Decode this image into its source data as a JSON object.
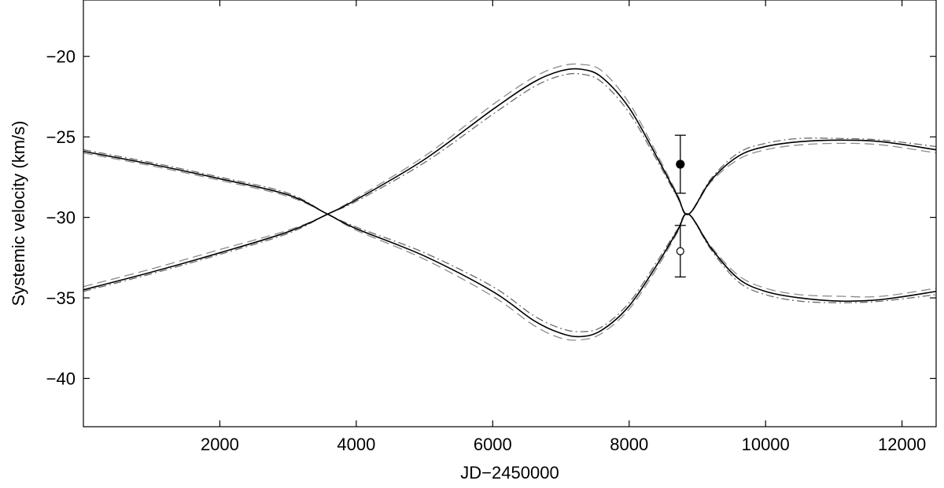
{
  "chart_data": {
    "type": "line",
    "title": "",
    "xlabel": "JD−2450000",
    "ylabel": "Systemic velocity (km/s)",
    "xlim": [
      0,
      12500
    ],
    "ylim": [
      -43,
      -16.5
    ],
    "xticks": [
      2000,
      4000,
      6000,
      8000,
      10000,
      12000
    ],
    "xtick_labels": [
      "2000",
      "4000",
      "6000",
      "8000",
      "10000",
      "12000"
    ],
    "yticks": [
      -40,
      -35,
      -30,
      -25,
      -20
    ],
    "ytick_labels": [
      "−40",
      "−35",
      "−30",
      "−25",
      "−20"
    ],
    "grid": false,
    "legend": "none",
    "series": [
      {
        "style": "solid",
        "x": [
          0,
          1000,
          2000,
          3000,
          3580,
          4000,
          5000,
          6000,
          6600,
          7000,
          7300,
          7600,
          8000,
          8400,
          8700,
          8870,
          9200,
          9600,
          10000,
          10500,
          11100,
          11700,
          12500
        ],
        "y": [
          -25.9,
          -26.7,
          -27.6,
          -28.6,
          -29.8,
          -30.7,
          -32.4,
          -34.6,
          -36.4,
          -37.2,
          -37.4,
          -37.0,
          -35.5,
          -33.0,
          -30.9,
          -29.8,
          -31.9,
          -33.8,
          -34.6,
          -35.0,
          -35.2,
          -35.1,
          -34.6
        ]
      },
      {
        "style": "solid",
        "x": [
          0,
          1000,
          2000,
          3000,
          3580,
          4000,
          5000,
          6000,
          6600,
          7000,
          7300,
          7600,
          8000,
          8400,
          8700,
          8870,
          9200,
          9600,
          10000,
          10500,
          11100,
          11700,
          12500
        ],
        "y": [
          -34.5,
          -33.4,
          -32.2,
          -30.9,
          -29.8,
          -28.9,
          -26.4,
          -23.3,
          -21.6,
          -20.9,
          -20.8,
          -21.3,
          -23.2,
          -26.2,
          -28.6,
          -29.8,
          -27.7,
          -26.2,
          -25.6,
          -25.3,
          -25.2,
          -25.3,
          -25.8
        ]
      },
      {
        "style": "dashed",
        "x": [
          0,
          1000,
          2000,
          3000,
          3580,
          4000,
          5000,
          6000,
          6600,
          7000,
          7300,
          7600,
          8000,
          8400,
          8700,
          8870,
          9200,
          9600,
          10000,
          10500,
          11100,
          11700,
          12500
        ],
        "y": [
          -26.0,
          -26.8,
          -27.7,
          -28.7,
          -29.8,
          -30.8,
          -32.6,
          -34.9,
          -36.7,
          -37.5,
          -37.6,
          -37.2,
          -35.7,
          -33.2,
          -31.0,
          -29.8,
          -31.8,
          -33.6,
          -34.4,
          -34.8,
          -34.9,
          -34.9,
          -34.4
        ]
      },
      {
        "style": "dashed",
        "x": [
          0,
          1000,
          2000,
          3000,
          3580,
          4000,
          5000,
          6000,
          6600,
          7000,
          7300,
          7600,
          8000,
          8400,
          8700,
          8870,
          9200,
          9600,
          10000,
          10500,
          11100,
          11700,
          12500
        ],
        "y": [
          -34.3,
          -33.2,
          -32.0,
          -30.8,
          -29.8,
          -28.8,
          -26.2,
          -23.0,
          -21.3,
          -20.6,
          -20.5,
          -20.9,
          -22.9,
          -26.0,
          -28.5,
          -29.8,
          -27.8,
          -26.4,
          -25.8,
          -25.5,
          -25.4,
          -25.5,
          -26.0
        ]
      },
      {
        "style": "dashdot",
        "x": [
          0,
          1000,
          2000,
          3000,
          3580,
          4000,
          5000,
          6000,
          6600,
          7000,
          7300,
          7600,
          8000,
          8400,
          8700,
          8870,
          9200,
          9600,
          10000,
          10500,
          11100,
          11700,
          12500
        ],
        "y": [
          -25.8,
          -26.6,
          -27.5,
          -28.5,
          -29.8,
          -30.6,
          -32.2,
          -34.3,
          -36.1,
          -36.9,
          -37.1,
          -36.8,
          -35.3,
          -32.8,
          -30.8,
          -29.8,
          -32.0,
          -34.0,
          -34.8,
          -35.2,
          -35.3,
          -35.2,
          -34.8
        ]
      },
      {
        "style": "dashdot",
        "x": [
          0,
          1000,
          2000,
          3000,
          3580,
          4000,
          5000,
          6000,
          6600,
          7000,
          7300,
          7600,
          8000,
          8400,
          8700,
          8870,
          9200,
          9600,
          10000,
          10500,
          11100,
          11700,
          12500
        ],
        "y": [
          -34.6,
          -33.5,
          -32.3,
          -31.0,
          -29.8,
          -29.0,
          -26.6,
          -23.6,
          -21.9,
          -21.2,
          -21.1,
          -21.6,
          -23.5,
          -26.4,
          -28.7,
          -29.8,
          -27.6,
          -26.0,
          -25.4,
          -25.1,
          -25.1,
          -25.2,
          -25.6
        ]
      }
    ],
    "points": [
      {
        "marker": "filled-circle",
        "x": 8750,
        "y": -26.7,
        "yerr": 1.8
      },
      {
        "marker": "open-circle",
        "x": 8750,
        "y": -32.1,
        "yerr": 1.6
      }
    ]
  }
}
